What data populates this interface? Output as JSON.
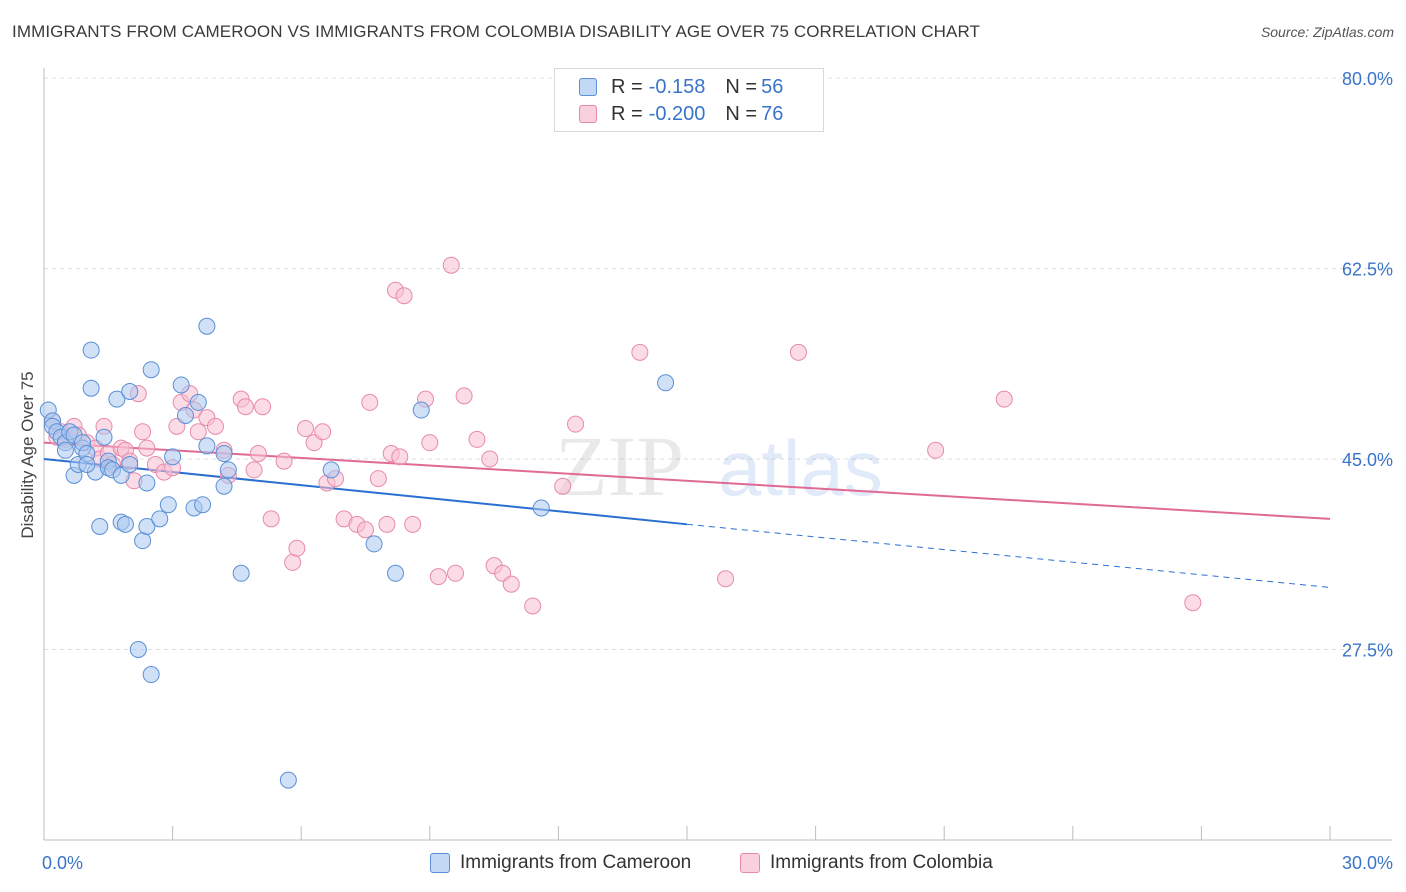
{
  "title": "IMMIGRANTS FROM CAMEROON VS IMMIGRANTS FROM COLOMBIA DISABILITY AGE OVER 75 CORRELATION CHART",
  "source": "Source: ZipAtlas.com",
  "watermark": {
    "zip": "ZIP",
    "atlas": "atlas"
  },
  "legend": {
    "rows": [
      {
        "r_label": "R = ",
        "r_value": "-0.158",
        "n_label": "N = ",
        "n_value": "56"
      },
      {
        "r_label": "R = ",
        "r_value": "-0.200",
        "n_label": "N = ",
        "n_value": "76"
      }
    ]
  },
  "bottom_legend": [
    "Immigrants from Cameroon",
    "Immigrants from Colombia"
  ],
  "colors": {
    "cameroon_fill": "#a9c8f0",
    "cameroon_stroke": "#5b8fd6",
    "cameroon_line": "#2a6fd1",
    "colombia_fill": "#f7bfd1",
    "colombia_stroke": "#e78aaa",
    "colombia_line": "#e06a94",
    "tick_text": "#3a74c8"
  },
  "chart_data": {
    "type": "scatter",
    "title": "IMMIGRANTS FROM CAMEROON VS IMMIGRANTS FROM COLOMBIA DISABILITY AGE OVER 75 CORRELATION CHART",
    "xlabel": "",
    "ylabel": "Disability Age Over 75",
    "xlim": [
      0,
      30
    ],
    "ylim": [
      10,
      80
    ],
    "x_tick_labels": [
      "0.0%",
      "30.0%"
    ],
    "y_ticks": [
      27.5,
      45.0,
      62.5,
      80.0
    ],
    "y_tick_labels": [
      "27.5%",
      "45.0%",
      "62.5%",
      "80.0%"
    ],
    "grid": "horizontal dashed",
    "legend_position": "top-center",
    "series": [
      {
        "name": "Immigrants from Cameroon",
        "r": -0.158,
        "n": 56,
        "points": [
          [
            0.1,
            49.5
          ],
          [
            0.2,
            48.5
          ],
          [
            0.2,
            48.0
          ],
          [
            0.3,
            47.5
          ],
          [
            0.4,
            47.0
          ],
          [
            0.5,
            46.5
          ],
          [
            0.6,
            47.5
          ],
          [
            0.5,
            45.8
          ],
          [
            0.7,
            47.2
          ],
          [
            0.7,
            43.5
          ],
          [
            0.8,
            44.5
          ],
          [
            0.9,
            46.0
          ],
          [
            0.9,
            46.5
          ],
          [
            1.0,
            45.5
          ],
          [
            1.1,
            55.0
          ],
          [
            1.1,
            51.5
          ],
          [
            1.2,
            43.8
          ],
          [
            1.3,
            38.8
          ],
          [
            1.4,
            47.0
          ],
          [
            1.5,
            44.8
          ],
          [
            1.5,
            44.2
          ],
          [
            1.6,
            44.0
          ],
          [
            1.7,
            50.5
          ],
          [
            1.8,
            39.2
          ],
          [
            1.8,
            43.5
          ],
          [
            1.9,
            39.0
          ],
          [
            2.0,
            51.2
          ],
          [
            2.0,
            44.5
          ],
          [
            2.2,
            27.5
          ],
          [
            2.3,
            37.5
          ],
          [
            2.4,
            38.8
          ],
          [
            2.4,
            42.8
          ],
          [
            2.5,
            53.2
          ],
          [
            2.7,
            39.5
          ],
          [
            2.9,
            40.8
          ],
          [
            3.0,
            45.2
          ],
          [
            3.2,
            51.8
          ],
          [
            3.3,
            49.0
          ],
          [
            3.6,
            50.2
          ],
          [
            3.5,
            40.5
          ],
          [
            3.7,
            40.8
          ],
          [
            3.8,
            57.2
          ],
          [
            3.8,
            46.2
          ],
          [
            4.2,
            42.5
          ],
          [
            4.2,
            45.5
          ],
          [
            4.3,
            44.0
          ],
          [
            4.6,
            34.5
          ],
          [
            5.7,
            15.5
          ],
          [
            6.7,
            44.0
          ],
          [
            7.7,
            37.2
          ],
          [
            8.2,
            34.5
          ],
          [
            8.8,
            49.5
          ],
          [
            11.6,
            40.5
          ],
          [
            14.5,
            52.0
          ],
          [
            2.5,
            25.2
          ],
          [
            1.0,
            44.5
          ]
        ]
      },
      {
        "name": "Immigrants from Colombia",
        "r": -0.2,
        "n": 76,
        "points": [
          [
            0.2,
            48.5
          ],
          [
            0.4,
            47.5
          ],
          [
            0.5,
            46.8
          ],
          [
            0.7,
            48.0
          ],
          [
            0.8,
            47.2
          ],
          [
            1.0,
            46.5
          ],
          [
            1.2,
            46.0
          ],
          [
            1.3,
            45.0
          ],
          [
            1.4,
            48.0
          ],
          [
            1.5,
            45.5
          ],
          [
            1.6,
            44.5
          ],
          [
            1.8,
            46.0
          ],
          [
            1.9,
            45.8
          ],
          [
            2.0,
            44.8
          ],
          [
            2.1,
            43.0
          ],
          [
            2.2,
            51.0
          ],
          [
            2.3,
            47.5
          ],
          [
            2.4,
            46.0
          ],
          [
            2.6,
            44.5
          ],
          [
            2.8,
            43.8
          ],
          [
            3.0,
            44.2
          ],
          [
            3.1,
            48.0
          ],
          [
            3.2,
            50.2
          ],
          [
            3.4,
            51.0
          ],
          [
            3.5,
            49.5
          ],
          [
            3.6,
            47.5
          ],
          [
            3.8,
            48.8
          ],
          [
            4.0,
            48.0
          ],
          [
            4.2,
            45.8
          ],
          [
            4.3,
            43.5
          ],
          [
            4.6,
            50.5
          ],
          [
            4.7,
            49.8
          ],
          [
            4.9,
            44.0
          ],
          [
            5.0,
            45.5
          ],
          [
            5.1,
            49.8
          ],
          [
            5.3,
            39.5
          ],
          [
            5.6,
            44.8
          ],
          [
            5.8,
            35.5
          ],
          [
            5.9,
            36.8
          ],
          [
            6.1,
            47.8
          ],
          [
            6.3,
            46.5
          ],
          [
            6.5,
            47.5
          ],
          [
            6.6,
            42.8
          ],
          [
            6.8,
            43.2
          ],
          [
            7.0,
            39.5
          ],
          [
            7.3,
            39.0
          ],
          [
            7.5,
            38.5
          ],
          [
            7.6,
            50.2
          ],
          [
            7.8,
            43.2
          ],
          [
            8.0,
            39.0
          ],
          [
            8.1,
            45.5
          ],
          [
            8.2,
            60.5
          ],
          [
            8.3,
            45.2
          ],
          [
            8.4,
            60.0
          ],
          [
            8.6,
            39.0
          ],
          [
            8.9,
            50.5
          ],
          [
            9.0,
            46.5
          ],
          [
            9.2,
            34.2
          ],
          [
            9.5,
            62.8
          ],
          [
            9.6,
            34.5
          ],
          [
            9.8,
            50.8
          ],
          [
            10.1,
            46.8
          ],
          [
            10.4,
            45.0
          ],
          [
            10.5,
            35.2
          ],
          [
            10.7,
            34.5
          ],
          [
            10.9,
            33.5
          ],
          [
            11.4,
            31.5
          ],
          [
            12.1,
            42.5
          ],
          [
            12.4,
            48.2
          ],
          [
            13.9,
            54.8
          ],
          [
            15.9,
            34.0
          ],
          [
            17.6,
            54.8
          ],
          [
            20.8,
            45.8
          ],
          [
            22.4,
            50.5
          ],
          [
            26.8,
            31.8
          ],
          [
            0.3,
            47.0
          ]
        ]
      }
    ],
    "trend_lines": [
      {
        "series": "Immigrants from Cameroon",
        "solid": [
          [
            0,
            45.0
          ],
          [
            15.0,
            39.0
          ]
        ],
        "dashed": [
          [
            15.0,
            39.0
          ],
          [
            30,
            33.2
          ]
        ]
      },
      {
        "series": "Immigrants from Colombia",
        "solid": [
          [
            0,
            46.5
          ],
          [
            30,
            39.5
          ]
        ]
      }
    ]
  }
}
